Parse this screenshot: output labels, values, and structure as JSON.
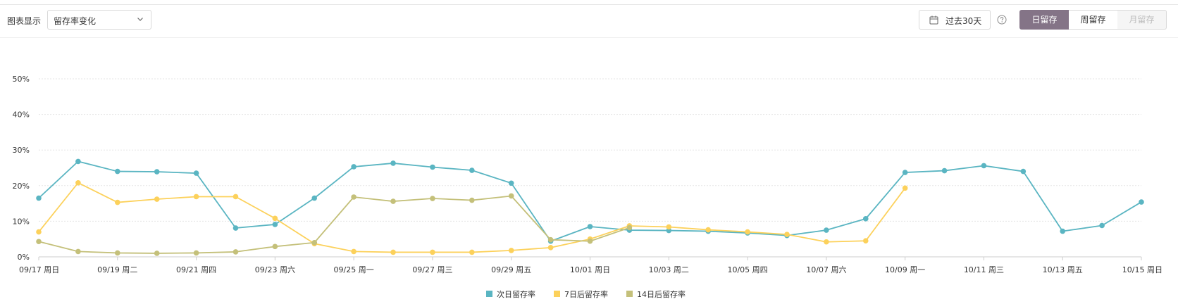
{
  "toolbar": {
    "display_label": "图表显示",
    "metric_select": {
      "value": "留存率变化",
      "icon": "chevron-down-icon"
    },
    "date_range": {
      "label": "过去30天",
      "icon": "calendar-icon"
    },
    "help_icon": "question-circle-icon",
    "granularity": {
      "day": "日留存",
      "week": "周留存",
      "month": "月留存",
      "selected": "day"
    }
  },
  "colors": {
    "selected_tab": "#847487",
    "series": [
      "#5ab5c2",
      "#fcd15b",
      "#c4c07a"
    ],
    "grid": "#e5e5e5"
  },
  "chart_data": {
    "type": "line",
    "title": "",
    "xlabel": "",
    "ylabel": "",
    "ylim": [
      0,
      50
    ],
    "y_ticks": [
      "0%",
      "10%",
      "20%",
      "30%",
      "40%",
      "50%"
    ],
    "x": [
      "09/17",
      "09/18",
      "09/19",
      "09/20",
      "09/21",
      "09/22",
      "09/23",
      "09/24",
      "09/25",
      "09/26",
      "09/27",
      "09/28",
      "09/29",
      "09/30",
      "10/01",
      "10/02",
      "10/03",
      "10/04",
      "10/05",
      "10/06",
      "10/07",
      "10/08",
      "10/09",
      "10/10",
      "10/11",
      "10/12",
      "10/13",
      "10/14",
      "10/15"
    ],
    "x_tick_labels": [
      "09/17 周日",
      "09/19 周二",
      "09/21 周四",
      "09/23 周六",
      "09/25 周一",
      "09/27 周三",
      "09/29 周五",
      "10/01 周日",
      "10/03 周二",
      "10/05 周四",
      "10/07 周六",
      "10/09 周一",
      "10/11 周三",
      "10/13 周五",
      "10/15 周日"
    ],
    "grid": true,
    "legend": "bottom-center",
    "series": [
      {
        "name": "次日留存率",
        "values": [
          16.5,
          26.8,
          24.0,
          23.9,
          23.5,
          8.1,
          9.1,
          16.5,
          25.3,
          26.3,
          25.2,
          24.3,
          20.7,
          4.4,
          8.5,
          7.5,
          7.4,
          7.2,
          6.7,
          6.0,
          7.5,
          10.7,
          23.7,
          24.2,
          25.6,
          24.0,
          7.2,
          8.8,
          15.4
        ]
      },
      {
        "name": "7日后留存率",
        "values": [
          7.0,
          20.8,
          15.3,
          16.2,
          16.9,
          16.9,
          10.8,
          3.7,
          1.5,
          1.3,
          1.3,
          1.3,
          1.8,
          2.6,
          5.0,
          8.7,
          8.4,
          7.6,
          7.0,
          6.3,
          4.2,
          4.5,
          19.3,
          null,
          null,
          null,
          null,
          null,
          null
        ]
      },
      {
        "name": "14日后留存率",
        "values": [
          4.3,
          1.5,
          1.1,
          1.0,
          1.1,
          1.4,
          2.9,
          4.0,
          16.8,
          15.6,
          16.4,
          15.9,
          17.1,
          4.8,
          4.4,
          8.2,
          null,
          null,
          null,
          null,
          null,
          null,
          null,
          null,
          null,
          null,
          null,
          null,
          null
        ]
      }
    ]
  }
}
